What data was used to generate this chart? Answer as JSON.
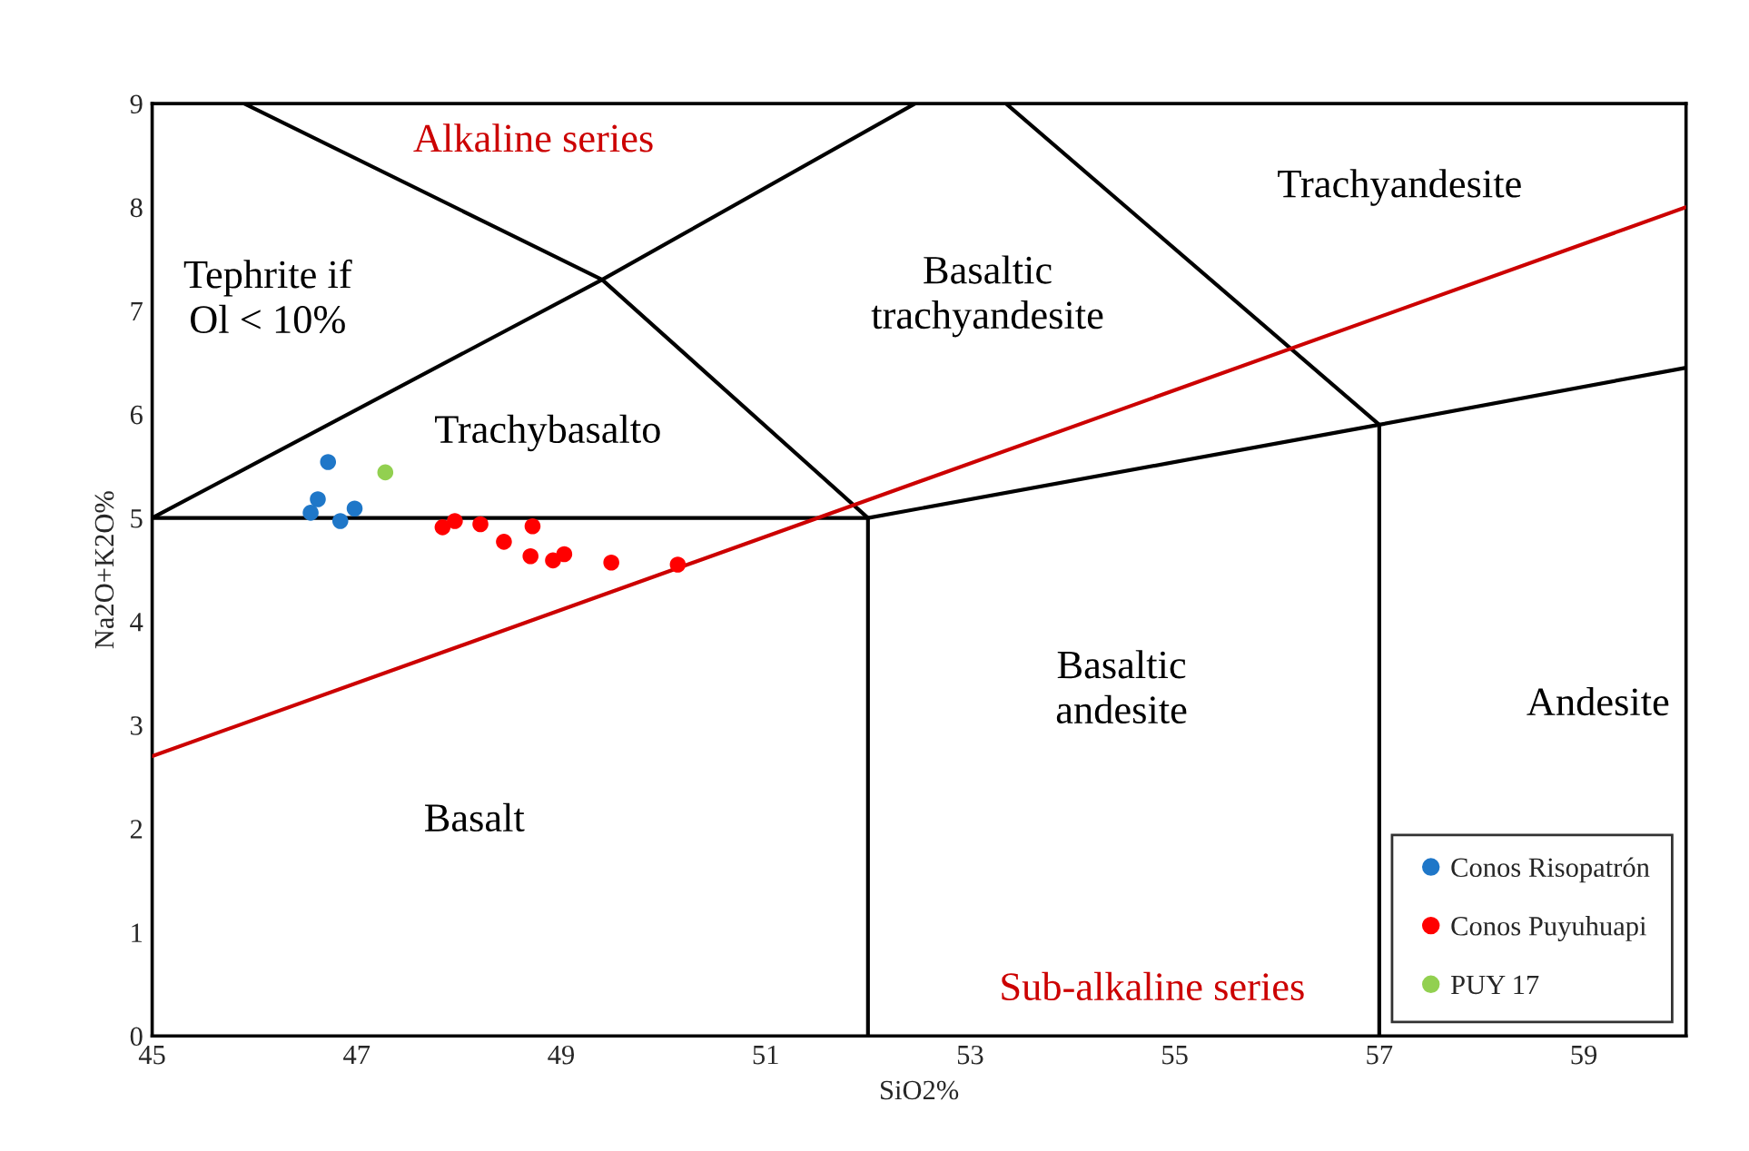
{
  "chart_data": {
    "type": "scatter",
    "xlabel": "SiO2%",
    "ylabel": "Na2O+K2O%",
    "xlim": [
      45,
      60
    ],
    "xticks": [
      45,
      47,
      49,
      51,
      53,
      55,
      57,
      59
    ],
    "ylim": [
      0,
      9
    ],
    "yticks": [
      0,
      1,
      2,
      3,
      4,
      5,
      6,
      7,
      8,
      9
    ],
    "grid": false,
    "legend": "bottom right",
    "marker": "circle",
    "series": [
      {
        "name": "Conos Risopatrón",
        "color": "#1f77c8",
        "x": [
          46.72,
          46.62,
          46.55,
          46.84,
          46.98
        ],
        "values": [
          5.54,
          5.18,
          5.05,
          4.97,
          5.09
        ]
      },
      {
        "name": "Conos Puyuhuapi",
        "color": "#ff0000",
        "x": [
          47.84,
          47.96,
          48.21,
          48.72,
          48.44,
          48.7,
          48.92,
          49.03,
          49.49,
          50.14
        ],
        "values": [
          4.91,
          4.97,
          4.94,
          4.92,
          4.77,
          4.63,
          4.59,
          4.65,
          4.57,
          4.55
        ]
      },
      {
        "name": "PUY 17",
        "color": "#92d050",
        "x": [
          47.28
        ],
        "values": [
          5.44
        ]
      },
      {
        "type": "line",
        "marker": "none",
        "color": "#000000",
        "x": [
          45,
          52,
          57,
          60
        ],
        "values": [
          5,
          5,
          5.9,
          6.45
        ]
      },
      {
        "type": "line",
        "marker": "none",
        "color": "#000000",
        "x": [
          52,
          52
        ],
        "values": [
          0,
          5
        ]
      },
      {
        "type": "line",
        "marker": "none",
        "color": "#000000",
        "x": [
          45,
          49.4,
          52
        ],
        "values": [
          5,
          7.3,
          5
        ]
      },
      {
        "type": "line",
        "marker": "none",
        "color": "#000000",
        "x": [
          45.9,
          49.4
        ],
        "values": [
          9,
          7.3
        ]
      },
      {
        "type": "line",
        "marker": "none",
        "color": "#000000",
        "x": [
          49.4,
          52.46
        ],
        "values": [
          7.3,
          9
        ]
      },
      {
        "type": "line",
        "marker": "none",
        "color": "#000000",
        "x": [
          57,
          57
        ],
        "values": [
          0,
          5.9
        ]
      },
      {
        "type": "line",
        "marker": "none",
        "color": "#000000",
        "x": [
          57,
          53.35
        ],
        "values": [
          5.9,
          9
        ]
      },
      {
        "type": "line",
        "marker": "none",
        "color": "#cc0000",
        "x": [
          45,
          60
        ],
        "values": [
          2.7,
          8
        ]
      }
    ],
    "annotations": [
      "Alkaline series",
      "Tephrite if\nOl < 10%",
      "Trachybasalto",
      "Basaltic\ntrachyandesite",
      "Trachyandesite",
      "Basaltic\nandesite",
      "Andesite",
      "Basalt",
      "Sub-alkaline series"
    ]
  }
}
